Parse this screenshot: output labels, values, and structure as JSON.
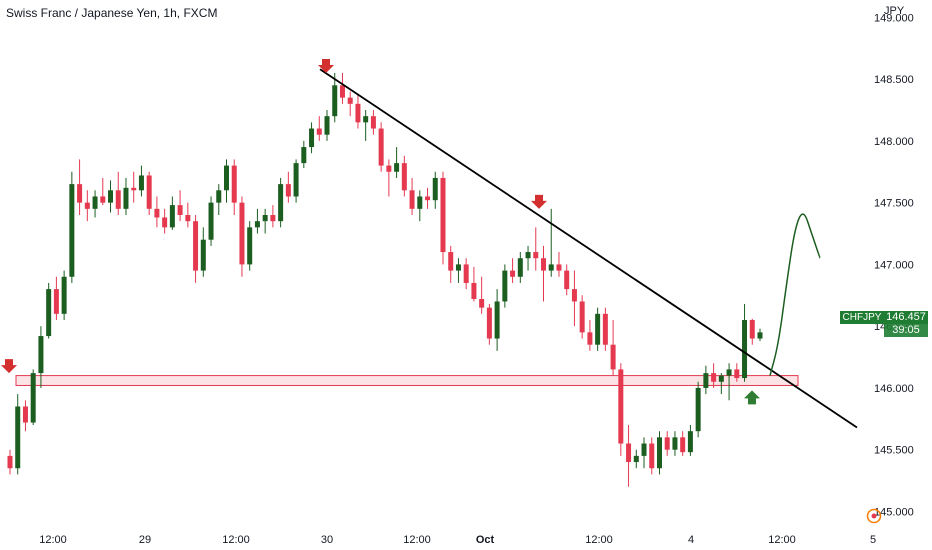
{
  "title": "Swiss Franc / Japanese Yen, 1h, FXCM",
  "currency": "JPY",
  "badge": {
    "symbol": "CHFJPY",
    "price": "146.457",
    "countdown": "39:05"
  },
  "colors": {
    "up": "#1b5e20",
    "down": "#e53950",
    "zone_fill": "#f8c8ce",
    "zone_stroke": "#e53950",
    "arrow_down": "#d32f2f",
    "arrow_up": "#2e7d32",
    "trendline": "#000000",
    "projection": "#1b5e20"
  },
  "icons": {
    "replay": "replay-icon",
    "arrow_down": "arrow-down-icon",
    "arrow_up": "arrow-up-icon"
  },
  "chart_data": {
    "type": "candlestick",
    "title": "Swiss Franc / Japanese Yen, 1h, FXCM",
    "ylabel": "JPY",
    "ylim": [
      144.85,
      149.1
    ],
    "y_ticks": [
      "145.000",
      "145.500",
      "146.000",
      "146.500",
      "147.000",
      "147.500",
      "148.000",
      "148.500",
      "149.000"
    ],
    "x_ticks": [
      "12:00",
      "29",
      "12:00",
      "30",
      "12:00",
      "Oct",
      "12:00",
      "4",
      "12:00",
      "5"
    ],
    "support_zone": [
      146.02,
      146.1
    ],
    "trendline": [
      [
        148.58,
        0.0
      ],
      [
        145.68,
        1.0
      ]
    ],
    "candles": [
      [
        145.45,
        145.5,
        145.3,
        145.35
      ],
      [
        145.35,
        145.95,
        145.3,
        145.85
      ],
      [
        145.85,
        145.9,
        145.65,
        145.72
      ],
      [
        145.72,
        146.15,
        145.7,
        146.12
      ],
      [
        146.12,
        146.5,
        146.0,
        146.42
      ],
      [
        146.42,
        146.85,
        146.4,
        146.8
      ],
      [
        146.8,
        146.9,
        146.55,
        146.6
      ],
      [
        146.6,
        146.95,
        146.55,
        146.9
      ],
      [
        146.9,
        147.75,
        146.85,
        147.65
      ],
      [
        147.65,
        147.85,
        147.4,
        147.5
      ],
      [
        147.5,
        147.6,
        147.35,
        147.45
      ],
      [
        147.45,
        147.6,
        147.38,
        147.55
      ],
      [
        147.55,
        147.7,
        147.48,
        147.5
      ],
      [
        147.5,
        147.68,
        147.42,
        147.6
      ],
      [
        147.6,
        147.75,
        147.4,
        147.45
      ],
      [
        147.45,
        147.7,
        147.4,
        147.62
      ],
      [
        147.62,
        147.75,
        147.5,
        147.6
      ],
      [
        147.6,
        147.8,
        147.55,
        147.72
      ],
      [
        147.72,
        147.75,
        147.4,
        147.45
      ],
      [
        147.45,
        147.55,
        147.3,
        147.38
      ],
      [
        147.38,
        147.45,
        147.25,
        147.3
      ],
      [
        147.3,
        147.55,
        147.28,
        147.48
      ],
      [
        147.48,
        147.6,
        147.35,
        147.4
      ],
      [
        147.4,
        147.5,
        147.3,
        147.35
      ],
      [
        147.35,
        147.4,
        146.85,
        146.95
      ],
      [
        146.95,
        147.3,
        146.9,
        147.2
      ],
      [
        147.2,
        147.55,
        147.15,
        147.5
      ],
      [
        147.5,
        147.65,
        147.4,
        147.6
      ],
      [
        147.6,
        147.85,
        147.5,
        147.8
      ],
      [
        147.8,
        147.85,
        147.4,
        147.5
      ],
      [
        147.5,
        147.55,
        146.9,
        147.0
      ],
      [
        147.0,
        147.35,
        146.95,
        147.3
      ],
      [
        147.3,
        147.45,
        147.25,
        147.35
      ],
      [
        147.35,
        147.45,
        147.25,
        147.4
      ],
      [
        147.4,
        147.48,
        147.3,
        147.35
      ],
      [
        147.35,
        147.7,
        147.3,
        147.65
      ],
      [
        147.65,
        147.75,
        147.5,
        147.55
      ],
      [
        147.55,
        147.85,
        147.5,
        147.82
      ],
      [
        147.82,
        148.0,
        147.78,
        147.95
      ],
      [
        147.95,
        148.15,
        147.9,
        148.1
      ],
      [
        148.1,
        148.2,
        148.0,
        148.05
      ],
      [
        148.05,
        148.25,
        148.0,
        148.2
      ],
      [
        148.2,
        148.55,
        148.15,
        148.45
      ],
      [
        148.45,
        148.55,
        148.3,
        148.35
      ],
      [
        148.35,
        148.4,
        148.2,
        148.3
      ],
      [
        148.3,
        148.38,
        148.1,
        148.15
      ],
      [
        148.15,
        148.25,
        148.0,
        148.2
      ],
      [
        148.2,
        148.25,
        148.05,
        148.1
      ],
      [
        148.1,
        148.15,
        147.75,
        147.8
      ],
      [
        147.8,
        147.85,
        147.55,
        147.75
      ],
      [
        147.75,
        147.95,
        147.7,
        147.82
      ],
      [
        147.82,
        147.88,
        147.55,
        147.6
      ],
      [
        147.6,
        147.7,
        147.4,
        147.45
      ],
      [
        147.45,
        147.6,
        147.35,
        147.55
      ],
      [
        147.55,
        147.62,
        147.45,
        147.52
      ],
      [
        147.52,
        147.75,
        147.45,
        147.7
      ],
      [
        147.7,
        147.75,
        147.0,
        147.1
      ],
      [
        147.1,
        147.15,
        146.85,
        146.95
      ],
      [
        146.95,
        147.05,
        146.85,
        147.0
      ],
      [
        147.0,
        147.05,
        146.8,
        146.85
      ],
      [
        146.85,
        146.98,
        146.7,
        146.72
      ],
      [
        146.72,
        146.9,
        146.6,
        146.65
      ],
      [
        146.65,
        146.68,
        146.35,
        146.4
      ],
      [
        146.4,
        146.8,
        146.3,
        146.7
      ],
      [
        146.7,
        147.0,
        146.65,
        146.95
      ],
      [
        146.95,
        147.05,
        146.85,
        146.9
      ],
      [
        146.9,
        147.1,
        146.85,
        147.05
      ],
      [
        147.05,
        147.15,
        146.95,
        147.1
      ],
      [
        147.1,
        147.3,
        146.95,
        147.05
      ],
      [
        147.05,
        147.15,
        146.7,
        146.95
      ],
      [
        146.95,
        147.45,
        146.9,
        147.0
      ],
      [
        147.0,
        147.1,
        146.9,
        146.95
      ],
      [
        146.95,
        147.0,
        146.75,
        146.8
      ],
      [
        146.8,
        146.95,
        146.5,
        146.7
      ],
      [
        146.7,
        146.75,
        146.4,
        146.45
      ],
      [
        146.45,
        146.55,
        146.3,
        146.35
      ],
      [
        146.35,
        146.65,
        146.3,
        146.6
      ],
      [
        146.6,
        146.65,
        146.3,
        146.35
      ],
      [
        146.35,
        146.55,
        146.1,
        146.15
      ],
      [
        146.15,
        146.2,
        145.45,
        145.55
      ],
      [
        145.55,
        145.7,
        145.2,
        145.4
      ],
      [
        145.4,
        145.5,
        145.35,
        145.45
      ],
      [
        145.45,
        145.6,
        145.35,
        145.55
      ],
      [
        145.55,
        145.6,
        145.3,
        145.35
      ],
      [
        145.35,
        145.65,
        145.3,
        145.6
      ],
      [
        145.6,
        145.65,
        145.45,
        145.5
      ],
      [
        145.5,
        145.65,
        145.45,
        145.6
      ],
      [
        145.6,
        145.65,
        145.45,
        145.48
      ],
      [
        145.48,
        145.7,
        145.45,
        145.65
      ],
      [
        145.65,
        146.05,
        145.6,
        146.0
      ],
      [
        146.0,
        146.18,
        145.95,
        146.12
      ],
      [
        146.12,
        146.2,
        146.0,
        146.05
      ],
      [
        146.05,
        146.12,
        145.95,
        146.1
      ],
      [
        146.1,
        146.2,
        145.9,
        146.15
      ],
      [
        146.15,
        146.2,
        146.05,
        146.08
      ],
      [
        146.08,
        146.68,
        146.05,
        146.55
      ],
      [
        146.55,
        146.56,
        146.35,
        146.4
      ],
      [
        146.4,
        146.48,
        146.38,
        146.45
      ]
    ],
    "projection": [
      146.1,
      146.35,
      146.85,
      147.3,
      147.45,
      147.25,
      147.05
    ]
  }
}
